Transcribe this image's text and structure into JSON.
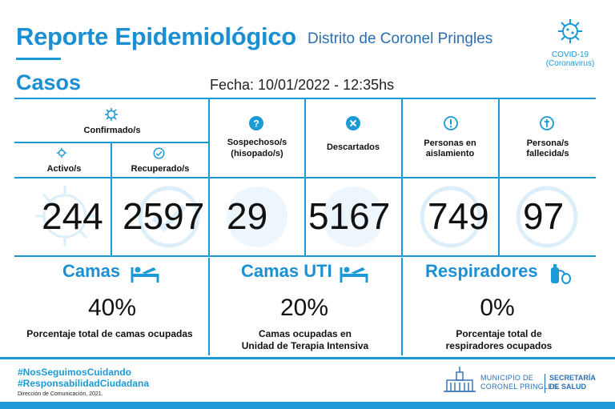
{
  "header": {
    "title": "Reporte Epidemiológico",
    "subtitle": "Distrito de Coronel Pringles",
    "logo_line1": "COVID-19",
    "logo_line2": "(Coronavirus)"
  },
  "casos": {
    "heading": "Casos",
    "fecha": "Fecha:  10/01/2022 - 12:35hs"
  },
  "table": {
    "confirmados_label": "Confirmado/s",
    "activos_label": "Activo/s",
    "recuperados_label": "Recuperado/s",
    "sospechosos_label_1": "Sospechoso/s",
    "sospechosos_label_2": "(hisopado/s)",
    "descartados_label": "Descartados",
    "aislamiento_label_1": "Personas en",
    "aislamiento_label_2": "aislamiento",
    "fallecidos_label_1": "Persona/s",
    "fallecidos_label_2": "fallecida/s",
    "activos_value": "244",
    "recuperados_value": "2597",
    "sospechosos_value": "29",
    "descartados_value": "5167",
    "aislamiento_value": "749",
    "fallecidos_value": "97"
  },
  "camas": {
    "title": "Camas",
    "percent": "40%",
    "desc_1": "Porcentaje total de camas ocupadas",
    "percent_value": 40
  },
  "camas_uti": {
    "title": "Camas UTI",
    "percent": "20%",
    "desc_1": "Camas ocupadas en",
    "desc_2": "Unidad de Terapia Intensiva",
    "percent_value": 20
  },
  "respiradores": {
    "title": "Respiradores",
    "percent": "0%",
    "desc_1": "Porcentaje total de",
    "desc_2": "respiradores ocupados",
    "percent_value": 0
  },
  "footer": {
    "hashtag_1": "#NosSeguimosCuidando",
    "hashtag_2": "#ResponsabilidadCiudadana",
    "credit": "Dirección de Comunicación, 2021.",
    "muni_1": "MUNICIPIO DE",
    "muni_2": "CORONEL PRINGLES",
    "secretaria_1": "SECRETARÍA",
    "secretaria_2": "DE SALUD"
  },
  "colors": {
    "accent": "#1b9ad6",
    "dark_blue": "#2a6fb5"
  },
  "icons": [
    "virus-icon",
    "check-circle-icon",
    "question-circle-icon",
    "x-circle-icon",
    "exclamation-circle-icon",
    "cross-circle-icon",
    "bed-icon",
    "respirator-icon"
  ]
}
